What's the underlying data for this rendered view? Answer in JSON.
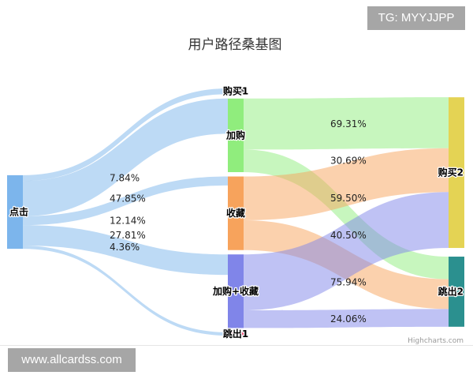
{
  "chart_data": {
    "type": "sankey",
    "title": "用户路径桑基图",
    "nodes": [
      {
        "id": "click",
        "label": "点击",
        "color": "#7cb5ec"
      },
      {
        "id": "buy1",
        "label": "购买1",
        "color": "#434348"
      },
      {
        "id": "cart",
        "label": "加购",
        "color": "#90ed7d"
      },
      {
        "id": "fav",
        "label": "收藏",
        "color": "#f7a35c"
      },
      {
        "id": "cartfav",
        "label": "加购+收藏",
        "color": "#8085e9"
      },
      {
        "id": "exit1",
        "label": "跳出1",
        "color": "#f15c80"
      },
      {
        "id": "buy2",
        "label": "购买2",
        "color": "#e4d354"
      },
      {
        "id": "exit2",
        "label": "跳出2",
        "color": "#2b908f"
      }
    ],
    "links": [
      {
        "from": "click",
        "to": "buy1",
        "value": 7.84,
        "label": "7.84%"
      },
      {
        "from": "click",
        "to": "cart",
        "value": 47.85,
        "label": "47.85%"
      },
      {
        "from": "click",
        "to": "fav",
        "value": 12.14,
        "label": "12.14%"
      },
      {
        "from": "click",
        "to": "cartfav",
        "value": 27.81,
        "label": "27.81%"
      },
      {
        "from": "click",
        "to": "exit1",
        "value": 4.36,
        "label": "4.36%"
      },
      {
        "from": "cart",
        "to": "buy2",
        "value": 69.31,
        "label": "69.31%"
      },
      {
        "from": "cart",
        "to": "exit2",
        "value": 30.69,
        "label": "30.69%"
      },
      {
        "from": "fav",
        "to": "buy2",
        "value": 59.5,
        "label": "59.50%"
      },
      {
        "from": "fav",
        "to": "exit2",
        "value": 40.5,
        "label": "40.50%"
      },
      {
        "from": "cartfav",
        "to": "buy2",
        "value": 75.94,
        "label": "75.94%"
      },
      {
        "from": "cartfav",
        "to": "exit2",
        "value": 24.06,
        "label": "24.06%"
      }
    ],
    "credits": "Highcharts.com"
  },
  "watermarks": {
    "tg": "TG: MYYJJPP",
    "site": "www.allcardss.com"
  }
}
